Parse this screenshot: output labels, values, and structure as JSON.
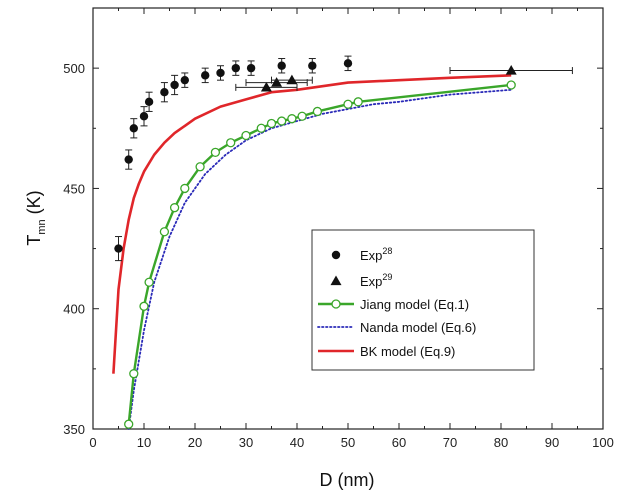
{
  "chart_data": {
    "type": "scatter",
    "xlabel": "D (nm)",
    "ylabel": {
      "base": "T",
      "sub": "mn",
      "suffix": " (K)"
    },
    "xlim": [
      0,
      100
    ],
    "ylim": [
      350,
      525
    ],
    "xticks": [
      0,
      10,
      20,
      30,
      40,
      50,
      60,
      70,
      80,
      90,
      100
    ],
    "yticks": [
      350,
      400,
      450,
      500
    ],
    "grid": false,
    "legend_position": "lower-right",
    "series": [
      {
        "name": "Exp",
        "sup": "28",
        "kind": "points",
        "marker": "circle",
        "color": "#111111",
        "x": [
          5,
          7,
          8,
          10,
          11,
          14,
          16,
          18,
          22,
          25,
          28,
          31,
          37,
          43,
          50
        ],
        "y": [
          425,
          462,
          475,
          480,
          486,
          490,
          493,
          495,
          497,
          498,
          500,
          500,
          501,
          501,
          502
        ],
        "yerr": [
          5,
          4,
          4,
          4,
          4,
          4,
          4,
          3,
          3,
          3,
          3,
          3,
          3,
          3,
          3
        ]
      },
      {
        "name": "Exp",
        "sup": "29",
        "kind": "points",
        "marker": "triangle",
        "color": "#111111",
        "x": [
          34,
          36,
          39,
          82
        ],
        "y": [
          492,
          494,
          495,
          499
        ],
        "xerr": [
          6,
          6,
          4,
          12
        ]
      },
      {
        "name": "Jiang model (Eq.1)",
        "kind": "line-markers",
        "marker": "open-circle",
        "color": "#3aa62a",
        "x": [
          7,
          8,
          10,
          11,
          14,
          16,
          18,
          21,
          24,
          27,
          30,
          33,
          35,
          37,
          39,
          41,
          44,
          50,
          52,
          82
        ],
        "y": [
          352,
          373,
          401,
          411,
          432,
          442,
          450,
          459,
          465,
          469,
          472,
          475,
          477,
          478,
          479,
          480,
          482,
          485,
          486,
          493
        ]
      },
      {
        "name": "Nanda model (Eq.6)",
        "kind": "dotted-line",
        "color": "#2a2ab8",
        "x": [
          7,
          8,
          10,
          12,
          15,
          18,
          22,
          26,
          30,
          35,
          40,
          45,
          50,
          55,
          60,
          70,
          82
        ],
        "y": [
          350,
          366,
          391,
          411,
          430,
          444,
          456,
          464,
          470,
          475,
          478,
          481,
          483,
          485,
          486,
          489,
          491
        ]
      },
      {
        "name": "BK model (Eq.9)",
        "kind": "line",
        "color": "#e0262a",
        "x": [
          4,
          5,
          6,
          7,
          8,
          9,
          10,
          12,
          14,
          16,
          18,
          20,
          25,
          30,
          35,
          40,
          50,
          60,
          70,
          82
        ],
        "y": [
          373,
          408,
          425,
          437,
          446,
          452,
          457,
          464,
          469,
          473,
          476,
          479,
          484,
          487,
          490,
          491,
          494,
          495,
          496,
          497
        ]
      }
    ]
  }
}
